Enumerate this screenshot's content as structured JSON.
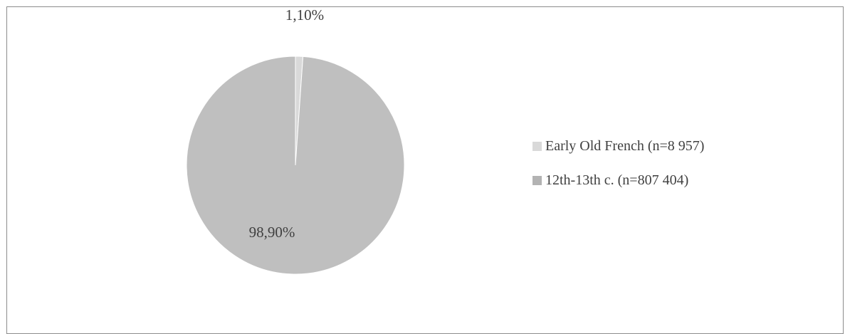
{
  "chart_data": {
    "type": "pie",
    "title": "",
    "slices": [
      {
        "name": "Early Old French (n=8 957)",
        "value": 1.1,
        "label": "1,10%",
        "color": "#d9d9d9"
      },
      {
        "name": "12th-13th c. (n=807 404)",
        "value": 98.9,
        "label": "98,90%",
        "color": "#bfbfbf"
      }
    ],
    "legend_position": "right"
  },
  "legend": {
    "items": [
      {
        "label": "Early Old French (n=8 957)",
        "color": "#d9d9d9"
      },
      {
        "label": "12th-13th c. (n=807 404)",
        "color": "#b3b3b3"
      }
    ]
  }
}
